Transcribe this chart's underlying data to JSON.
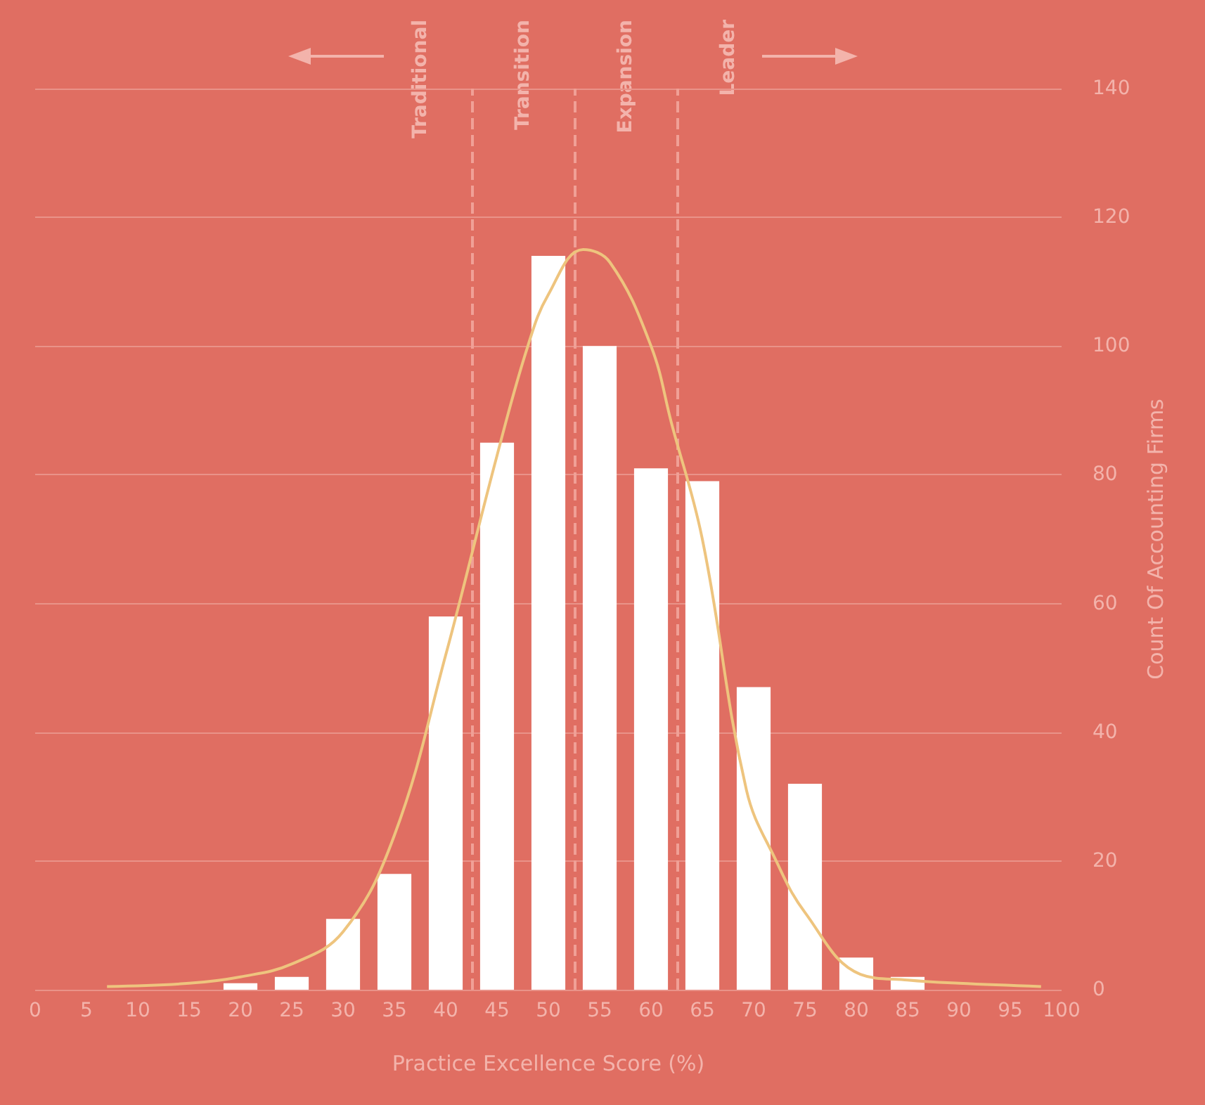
{
  "chart_data": {
    "type": "bar",
    "xlabel": "Practice Excellence Score (%)",
    "ylabel": "Count Of Accounting Firms",
    "xlim": [
      0,
      100
    ],
    "xticks": [
      0,
      5,
      10,
      15,
      20,
      25,
      30,
      35,
      40,
      45,
      50,
      55,
      60,
      65,
      70,
      75,
      80,
      85,
      90,
      95,
      100
    ],
    "ylim": [
      0,
      140
    ],
    "yticks": [
      0,
      20,
      40,
      60,
      80,
      100,
      120,
      140
    ],
    "grid": "y",
    "series": [
      {
        "color": "#ffffff",
        "x": [
          20,
          25,
          30,
          35,
          40,
          45,
          50,
          55,
          60,
          65,
          70,
          75,
          80,
          85
        ],
        "values": [
          1,
          2,
          11,
          18,
          58,
          85,
          114,
          100,
          81,
          79,
          47,
          32,
          5,
          2
        ]
      },
      {
        "type": "line",
        "color": "#eec47e",
        "marker": "none",
        "x": [
          7,
          15,
          20,
          25,
          30,
          35,
          40,
          45,
          48,
          50,
          53.4,
          56,
          60,
          62,
          65,
          69.3,
          72.2,
          75,
          80.4,
          85,
          90,
          98
        ],
        "values": [
          0.5,
          1,
          2,
          4,
          9,
          24,
          52,
          83,
          100,
          108,
          115,
          113,
          100,
          88,
          70,
          31,
          20,
          12,
          2.4,
          1.5,
          1,
          0.5
        ]
      }
    ],
    "ref_lines": [
      {
        "axis": "x",
        "value": 42.5,
        "line_style": "dashed",
        "color": "#f0a096"
      },
      {
        "axis": "x",
        "value": 52.5,
        "line_style": "dashed",
        "color": "#f0a096"
      },
      {
        "axis": "x",
        "value": 62.5,
        "line_style": "dashed",
        "color": "#f0a096"
      }
    ],
    "annotations": [
      "Traditional",
      "Transition",
      "Expansion",
      "Leader"
    ]
  }
}
